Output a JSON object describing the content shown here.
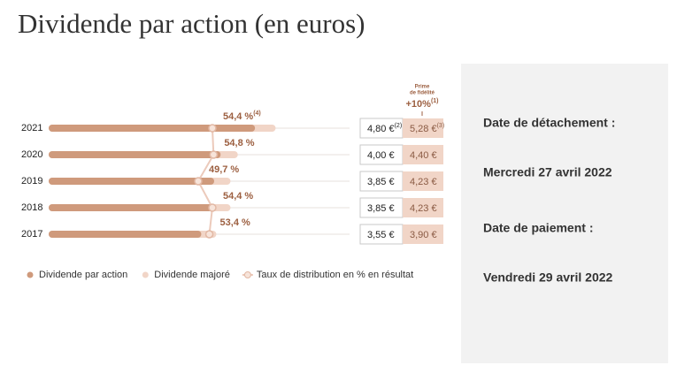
{
  "title": "Dividende par action (en euros)",
  "chart_data": {
    "type": "bar",
    "orientation": "horizontal",
    "categories": [
      "2021",
      "2020",
      "2019",
      "2018",
      "2017"
    ],
    "series": [
      {
        "name": "Dividende par action",
        "color": "#cf9a7c",
        "values": [
          4.8,
          4.0,
          3.85,
          3.85,
          3.55
        ],
        "value_labels": [
          "4,80 €",
          "4,00 €",
          "3,85 €",
          "3,85 €",
          "3,55 €"
        ],
        "notes": [
          "(2)",
          null,
          null,
          null,
          null
        ]
      },
      {
        "name": "Dividende majoré",
        "color": "#f1d5c7",
        "values": [
          5.28,
          4.4,
          4.23,
          4.23,
          3.9
        ],
        "value_labels": [
          "5,28 €",
          "4,40 €",
          "4,23 €",
          "4,23 €",
          "3,90 €"
        ],
        "notes": [
          "(3)",
          null,
          null,
          null,
          null
        ]
      },
      {
        "name": "Taux de distribution en % en résultat",
        "type": "line",
        "axis": "x2",
        "color": "#eccabb",
        "values": [
          54.4,
          54.8,
          49.7,
          54.4,
          53.4
        ],
        "value_labels": [
          "54,4 %",
          "54,8 %",
          "49,7 %",
          "54,4 %",
          "53,4 %"
        ],
        "notes": [
          "(4)",
          null,
          null,
          null,
          null
        ]
      }
    ],
    "xlim": [
      0,
      7
    ],
    "x2lim": [
      0,
      100
    ],
    "bonus_header": {
      "label_lines": [
        "Prime",
        "de fidélité"
      ],
      "text": "+10%",
      "note": "(1)"
    }
  },
  "side_panel": {
    "items": [
      "Date de détachement :",
      "Mercredi 27 avril 2022",
      "Date de paiement :",
      "Vendredi 29 avril 2022"
    ]
  }
}
